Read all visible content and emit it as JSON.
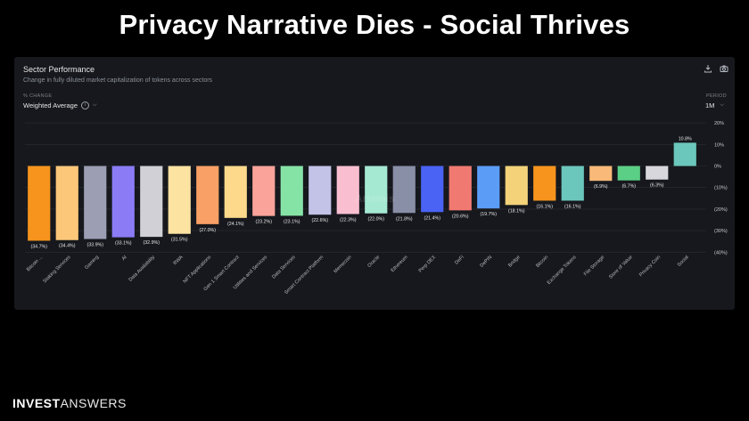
{
  "headline": "Privacy Narrative Dies - Social Thrives",
  "panel": {
    "title": "Sector Performance",
    "subtitle": "Change in fully diluted market capitalization of tokens across sectors",
    "method_label": "% CHANGE",
    "method_value": "Weighted Average",
    "period_label": "PERIOD",
    "period_value": "1M",
    "watermark": "Artemis"
  },
  "icons": {
    "download": "download-icon",
    "camera": "camera-icon",
    "info": "info-icon",
    "chevron": "chevron-down-icon"
  },
  "brand": {
    "bold": "INVEST",
    "light": "ANSWERS"
  },
  "chart_data": {
    "type": "bar",
    "categories": [
      "Bitcoin ...",
      "Staking Services",
      "Gaming",
      "AI",
      "Data Availability",
      "RWA",
      "NFT Applications",
      "Gen 1 Smart Contract",
      "Utilities and Services",
      "Data Services",
      "Smart Contract Platform",
      "Memecoin",
      "Oracle",
      "Ethereum",
      "Perp DEX",
      "DeFi",
      "DePIN",
      "Bridge",
      "Bitcoin",
      "Exchange Tokens",
      "File Storage",
      "Store of Value",
      "Privacy Coin",
      "Social"
    ],
    "values": [
      -34.7,
      -34.4,
      -33.9,
      -33.1,
      -32.9,
      -31.5,
      -27.0,
      -24.1,
      -23.2,
      -23.1,
      -22.6,
      -22.3,
      -22.0,
      -21.8,
      -21.4,
      -20.6,
      -19.7,
      -18.1,
      -16.1,
      -16.1,
      -6.9,
      -6.7,
      -6.3,
      10.8
    ],
    "value_labels": [
      "(34.7%)",
      "(34.4%)",
      "(33.9%)",
      "(33.1%)",
      "(32.9%)",
      "(31.5%)",
      "(27.0%)",
      "(24.1%)",
      "(23.2%)",
      "(23.1%)",
      "(22.6%)",
      "(22.3%)",
      "(22.0%)",
      "(21.8%)",
      "(21.4%)",
      "(20.6%)",
      "(19.7%)",
      "(18.1%)",
      "(16.1%)",
      "(16.1%)",
      "(6.9%)",
      "(6.7%)",
      "(6.3%)",
      "10.8%"
    ],
    "colors": [
      "#f7941d",
      "#fdc77a",
      "#9c9eb3",
      "#8b7cf6",
      "#d0d0d6",
      "#fde3a2",
      "#f9a066",
      "#fdd98c",
      "#f9a39a",
      "#86e3a6",
      "#c3c3e8",
      "#f9bfd1",
      "#a6e9d3",
      "#8a8fa8",
      "#4a63f5",
      "#f07a72",
      "#5b9cf7",
      "#f3d27a",
      "#f7941d",
      "#6bc7bc",
      "#f9b979",
      "#5ccf86",
      "#d8d8dc",
      "#6bc7bc"
    ],
    "yticks": [
      20,
      10,
      0,
      -10,
      -20,
      -30,
      -40
    ],
    "ytick_labels": [
      "20%",
      "10%",
      "0%",
      "(10%)",
      "(20%)",
      "(30%)",
      "(40%)"
    ],
    "ylim": [
      -40,
      20
    ],
    "grid": true
  }
}
